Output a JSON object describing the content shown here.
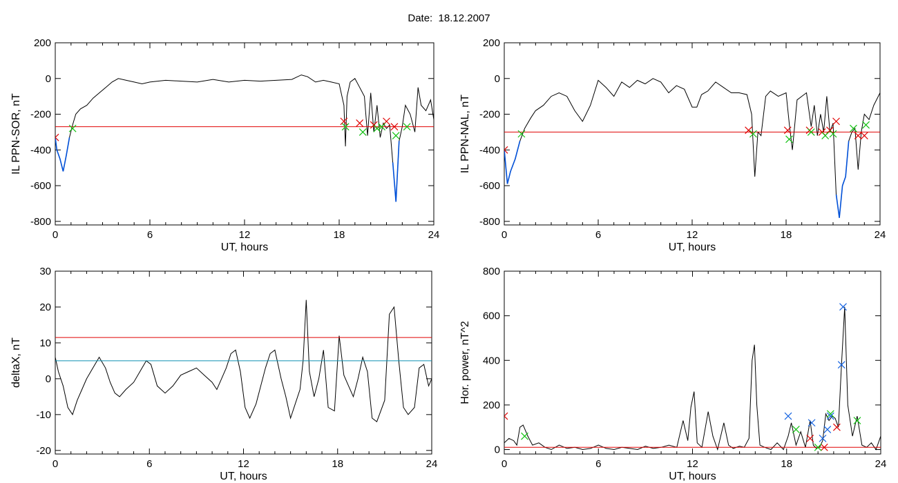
{
  "title": "Date:  18.12.2007",
  "colors": {
    "threshold": "#e00000",
    "secondary_threshold": "#0b8fb0",
    "event": "#0050d8",
    "marker_red": "#e00000",
    "marker_green": "#10c010",
    "marker_blue": "#1060e0",
    "trace": "#000000"
  },
  "chart_data": [
    {
      "id": "sor",
      "type": "line",
      "ylabel": "IL PPN-SOR, nT",
      "xlabel": "UT, hours",
      "xlim": [
        0,
        24
      ],
      "ylim": [
        -820,
        200
      ],
      "xticks": [
        0,
        6,
        12,
        18,
        24
      ],
      "yticks": [
        -800,
        -600,
        -400,
        -200,
        0,
        200
      ],
      "threshold": -270,
      "series": [
        {
          "x": [
            0,
            0.1,
            0.3,
            0.5,
            0.7,
            0.9,
            1.1,
            1.3,
            1.6,
            2.0,
            2.4,
            2.8,
            3.2,
            3.6,
            4.0,
            4.5,
            5.0,
            5.5,
            6.0,
            7.0,
            8.0,
            9.0,
            10.0,
            11.0,
            12.0,
            13.0,
            14.0,
            15.0,
            15.6,
            16.0,
            16.5,
            17.0,
            17.5,
            18.0,
            18.3,
            18.4,
            18.5,
            18.7,
            19.0,
            19.3,
            19.6,
            19.8,
            20.0,
            20.2,
            20.4,
            20.6,
            20.8,
            21.0,
            21.2,
            21.4,
            21.6,
            21.8,
            22.0,
            22.2,
            22.5,
            22.8,
            23.0,
            23.2,
            23.5,
            23.8,
            24.0
          ],
          "y": [
            -330,
            -400,
            -450,
            -520,
            -430,
            -330,
            -260,
            -200,
            -170,
            -150,
            -110,
            -80,
            -50,
            -20,
            0,
            -10,
            -20,
            -30,
            -20,
            -10,
            -15,
            -20,
            -5,
            -20,
            -10,
            -15,
            -10,
            -5,
            20,
            10,
            -20,
            -10,
            -20,
            -30,
            -150,
            -380,
            -100,
            -20,
            0,
            -50,
            -100,
            -320,
            -80,
            -300,
            -150,
            -330,
            -250,
            -280,
            -260,
            -470,
            -690,
            -350,
            -270,
            -150,
            -200,
            -300,
            -50,
            -150,
            -180,
            -120,
            -230
          ]
        }
      ],
      "markers_red": [
        [
          0,
          -330
        ],
        [
          18.3,
          -240
        ],
        [
          19.3,
          -250
        ],
        [
          20.2,
          -260
        ],
        [
          21.0,
          -240
        ],
        [
          21.5,
          -270
        ]
      ],
      "markers_green": [
        [
          1.1,
          -280
        ],
        [
          18.4,
          -270
        ],
        [
          19.5,
          -300
        ],
        [
          20.4,
          -280
        ],
        [
          20.7,
          -270
        ],
        [
          21.6,
          -320
        ],
        [
          22.3,
          -270
        ]
      ]
    },
    {
      "id": "nal",
      "type": "line",
      "ylabel": "IL PPN-NAL, nT",
      "xlabel": "UT, hours",
      "xlim": [
        0,
        24
      ],
      "ylim": [
        -820,
        200
      ],
      "xticks": [
        0,
        6,
        12,
        18,
        24
      ],
      "yticks": [
        -800,
        -600,
        -400,
        -200,
        0,
        200
      ],
      "threshold": -300,
      "series": [
        {
          "x": [
            0,
            0.2,
            0.4,
            0.7,
            1.0,
            1.3,
            1.7,
            2.0,
            2.5,
            3.0,
            3.5,
            4.0,
            4.5,
            5.0,
            5.5,
            6.0,
            6.5,
            7.0,
            7.5,
            8.0,
            8.5,
            9.0,
            9.5,
            10.0,
            10.5,
            11.0,
            11.5,
            12.0,
            12.3,
            12.6,
            13.0,
            13.5,
            14.0,
            14.5,
            15.0,
            15.5,
            15.8,
            16.0,
            16.2,
            16.4,
            16.7,
            17.0,
            17.5,
            18.0,
            18.2,
            18.4,
            18.7,
            19.0,
            19.3,
            19.6,
            19.8,
            20.0,
            20.2,
            20.4,
            20.6,
            20.8,
            21.0,
            21.2,
            21.4,
            21.6,
            21.8,
            22.0,
            22.2,
            22.4,
            22.6,
            22.8,
            23.0,
            23.3,
            23.6,
            24.0
          ],
          "y": [
            -400,
            -590,
            -520,
            -450,
            -350,
            -280,
            -220,
            -180,
            -150,
            -100,
            -80,
            -100,
            -180,
            -240,
            -150,
            -10,
            -50,
            -100,
            -20,
            -50,
            -10,
            -30,
            0,
            -20,
            -80,
            -40,
            -60,
            -160,
            -160,
            -90,
            -70,
            -20,
            -50,
            -80,
            -80,
            -90,
            -200,
            -550,
            -300,
            -320,
            -100,
            -70,
            -100,
            -80,
            -250,
            -400,
            -120,
            -100,
            -80,
            -270,
            -150,
            -320,
            -200,
            -300,
            -100,
            -300,
            -250,
            -650,
            -780,
            -600,
            -550,
            -350,
            -300,
            -280,
            -510,
            -300,
            -200,
            -230,
            -150,
            -80
          ]
        }
      ],
      "markers_red": [
        [
          0,
          -400
        ],
        [
          15.6,
          -290
        ],
        [
          18.1,
          -290
        ],
        [
          19.5,
          -290
        ],
        [
          20.3,
          -300
        ],
        [
          20.8,
          -290
        ],
        [
          21.2,
          -240
        ],
        [
          22.6,
          -320
        ],
        [
          23.0,
          -320
        ]
      ],
      "markers_green": [
        [
          1.1,
          -310
        ],
        [
          15.9,
          -310
        ],
        [
          18.2,
          -340
        ],
        [
          19.6,
          -300
        ],
        [
          20.5,
          -320
        ],
        [
          21.0,
          -310
        ],
        [
          22.3,
          -280
        ],
        [
          23.1,
          -260
        ]
      ]
    },
    {
      "id": "deltax",
      "type": "line",
      "ylabel": "deltaX, nT",
      "xlabel": "UT, hours",
      "xlim": [
        0,
        24
      ],
      "ylim": [
        -21,
        30
      ],
      "xticks": [
        0,
        6,
        12,
        18,
        24
      ],
      "yticks": [
        -20,
        -10,
        0,
        10,
        20,
        30
      ],
      "threshold": 11.5,
      "secondary_threshold": 5,
      "series": [
        {
          "x": [
            0,
            0.2,
            0.5,
            0.8,
            1.1,
            1.4,
            1.7,
            2.0,
            2.4,
            2.8,
            3.2,
            3.5,
            3.8,
            4.1,
            4.5,
            5.0,
            5.4,
            5.8,
            6.1,
            6.5,
            7.0,
            7.5,
            8.0,
            8.5,
            9.0,
            9.5,
            10.0,
            10.3,
            10.6,
            10.9,
            11.2,
            11.5,
            11.8,
            12.1,
            12.4,
            12.8,
            13.1,
            13.4,
            13.7,
            14.0,
            14.4,
            14.7,
            15.0,
            15.3,
            15.6,
            15.8,
            16.0,
            16.2,
            16.5,
            16.8,
            17.1,
            17.4,
            17.8,
            18.1,
            18.4,
            18.7,
            19.0,
            19.3,
            19.6,
            19.9,
            20.2,
            20.5,
            21.0,
            21.3,
            21.6,
            21.9,
            22.2,
            22.5,
            22.9,
            23.2,
            23.5,
            23.8,
            24.0
          ],
          "y": [
            6,
            2,
            -2,
            -8,
            -10,
            -6,
            -3,
            0,
            3,
            6,
            3,
            -1,
            -4,
            -5,
            -3,
            -1,
            2,
            5,
            4,
            -2,
            -4,
            -2,
            1,
            2,
            3,
            1,
            -1,
            -3,
            0,
            3,
            7,
            8,
            2,
            -8,
            -11,
            -7,
            -2,
            3,
            7,
            8,
            0,
            -5,
            -11,
            -7,
            -3,
            5,
            22,
            2,
            -5,
            0,
            8,
            -8,
            -9,
            12,
            1,
            -2,
            -5,
            0,
            6,
            2,
            -11,
            -12,
            -6,
            18,
            20,
            5,
            -8,
            -10,
            -8,
            3,
            4,
            -2,
            0
          ]
        }
      ]
    },
    {
      "id": "power",
      "type": "line",
      "ylabel": "Hor. power, nT^2",
      "xlabel": "UT, hours",
      "xlim": [
        0,
        24
      ],
      "ylim": [
        -20,
        800
      ],
      "xticks": [
        0,
        6,
        12,
        18,
        24
      ],
      "yticks": [
        0,
        200,
        400,
        600,
        800
      ],
      "threshold": 10,
      "series": [
        {
          "x": [
            0,
            0.3,
            0.6,
            0.8,
            1.0,
            1.2,
            1.5,
            1.8,
            2.2,
            2.6,
            3.0,
            3.5,
            4.0,
            4.5,
            5.0,
            5.5,
            6.0,
            6.5,
            7.0,
            7.5,
            8.0,
            8.5,
            9.0,
            9.5,
            10.0,
            10.5,
            11.0,
            11.4,
            11.7,
            11.9,
            12.1,
            12.3,
            12.6,
            13.0,
            13.3,
            13.6,
            14.0,
            14.3,
            14.6,
            15.0,
            15.3,
            15.6,
            15.8,
            15.95,
            16.1,
            16.3,
            16.6,
            17.0,
            17.4,
            17.8,
            18.1,
            18.3,
            18.6,
            18.9,
            19.2,
            19.5,
            19.7,
            19.9,
            20.1,
            20.3,
            20.5,
            20.7,
            20.9,
            21.1,
            21.3,
            21.5,
            21.7,
            21.9,
            22.2,
            22.5,
            22.8,
            23.1,
            23.4,
            23.7,
            24.0
          ],
          "y": [
            30,
            50,
            40,
            20,
            100,
            110,
            60,
            20,
            30,
            10,
            0,
            20,
            5,
            10,
            0,
            5,
            20,
            5,
            0,
            10,
            5,
            0,
            15,
            5,
            10,
            20,
            10,
            130,
            40,
            190,
            260,
            30,
            10,
            170,
            60,
            0,
            120,
            20,
            5,
            15,
            10,
            50,
            400,
            470,
            200,
            20,
            10,
            0,
            30,
            0,
            60,
            120,
            20,
            80,
            10,
            130,
            20,
            5,
            10,
            40,
            160,
            130,
            150,
            140,
            100,
            380,
            640,
            200,
            60,
            150,
            20,
            10,
            30,
            0,
            60
          ]
        }
      ],
      "markers_red": [
        [
          0,
          150
        ],
        [
          19.5,
          50
        ],
        [
          20.4,
          10
        ],
        [
          21.2,
          100
        ]
      ],
      "markers_green": [
        [
          1.3,
          60
        ],
        [
          18.6,
          90
        ],
        [
          20.0,
          10
        ],
        [
          20.8,
          160
        ],
        [
          22.5,
          130
        ]
      ],
      "markers_blue": [
        [
          18.1,
          150
        ],
        [
          19.6,
          120
        ],
        [
          20.3,
          50
        ],
        [
          20.6,
          90
        ],
        [
          20.8,
          150
        ],
        [
          21.5,
          380
        ],
        [
          21.6,
          640
        ]
      ]
    }
  ]
}
